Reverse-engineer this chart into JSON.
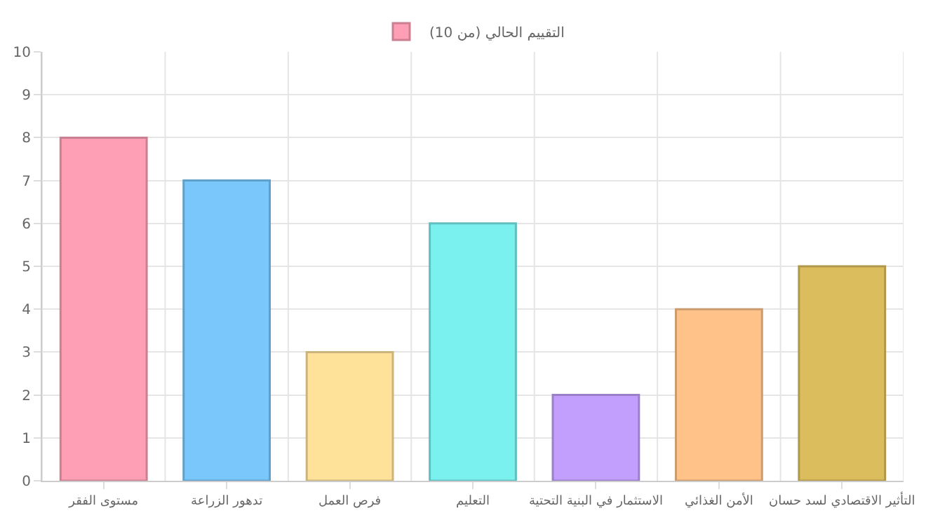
{
  "chart_data": {
    "type": "bar",
    "categories": [
      "مستوى الفقر",
      "تدهور الزراعة",
      "فرص العمل",
      "التعليم",
      "الاستثمار في البنية التحتية",
      "الأمن الغذائي",
      "التأثير الاقتصادي لسد حسان"
    ],
    "series": [
      {
        "name": "التقييم الحالي (من 10)",
        "colors": [
          "#ff9fb5",
          "#7ac8fb",
          "#fee29a",
          "#7af0ef",
          "#c29ffd",
          "#ffc38a",
          "#dcbd5e"
        ],
        "values": [
          8,
          7,
          3,
          6,
          2,
          4,
          5
        ]
      }
    ],
    "ylim": [
      0,
      10
    ],
    "yticks": [
      0,
      1,
      2,
      3,
      4,
      5,
      6,
      7,
      8,
      9,
      10
    ],
    "grid": true,
    "legend": "top"
  }
}
